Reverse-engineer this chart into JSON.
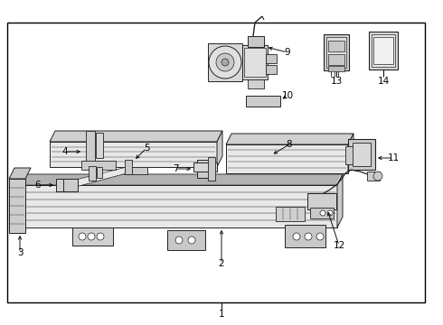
{
  "bg_color": "#ffffff",
  "border_color": "#000000",
  "line_color": "#222222",
  "fig_width": 4.9,
  "fig_height": 3.6,
  "dpi": 100
}
